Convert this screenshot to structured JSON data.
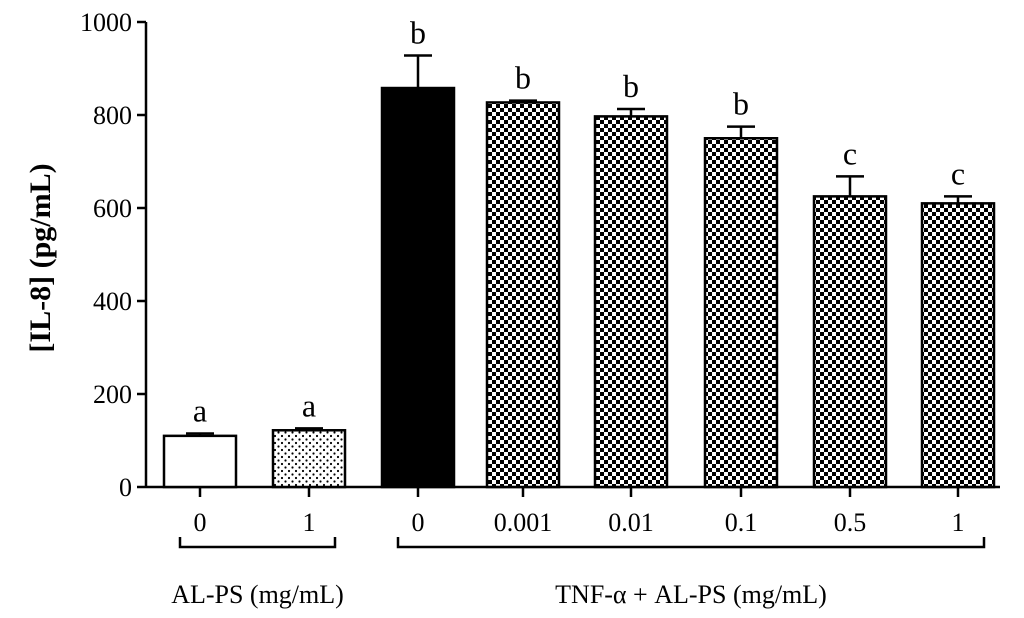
{
  "chart_data": {
    "type": "bar",
    "ylabel": "[IL-8] (pg/mL)",
    "ylim": [
      0,
      1000
    ],
    "yticks": [
      0,
      200,
      400,
      600,
      800,
      1000
    ],
    "categories": [
      "0",
      "1",
      "0",
      "0.001",
      "0.01",
      "0.1",
      "0.5",
      "1"
    ],
    "values": [
      110,
      122,
      858,
      827,
      797,
      750,
      625,
      610
    ],
    "errors": [
      5,
      4,
      70,
      4,
      16,
      25,
      43,
      15
    ],
    "significance": [
      "a",
      "a",
      "b",
      "b",
      "b",
      "b",
      "c",
      "c"
    ],
    "fills": [
      "white",
      "dots",
      "black",
      "checker",
      "checker",
      "checker",
      "checker",
      "checker"
    ],
    "groups": [
      {
        "label": "AL-PS (mg/mL)",
        "start": 0,
        "end": 1
      },
      {
        "label": "TNF-α + AL-PS (mg/mL)",
        "start": 2,
        "end": 7
      }
    ],
    "grid": false
  }
}
